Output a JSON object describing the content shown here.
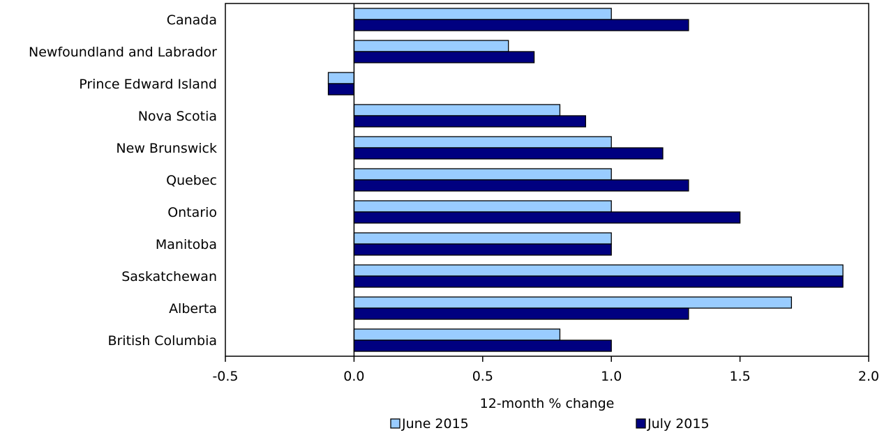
{
  "chart_data": {
    "type": "bar",
    "orientation": "horizontal",
    "categories": [
      "Canada",
      "Newfoundland and Labrador",
      "Prince Edward Island",
      "Nova Scotia",
      "New Brunswick",
      "Quebec",
      "Ontario",
      "Manitoba",
      "Saskatchewan",
      "Alberta",
      "British Columbia"
    ],
    "series": [
      {
        "name": "June 2015",
        "color": "#99ccff",
        "values": [
          1.0,
          0.6,
          -0.1,
          0.8,
          1.0,
          1.0,
          1.0,
          1.0,
          1.9,
          1.7,
          0.8
        ]
      },
      {
        "name": "July 2015",
        "color": "#000080",
        "values": [
          1.3,
          0.7,
          -0.1,
          0.9,
          1.2,
          1.3,
          1.5,
          1.0,
          1.9,
          1.3,
          1.0
        ]
      }
    ],
    "xlabel": "12-month % change",
    "xlim": [
      -0.5,
      2.0
    ],
    "xticks": [
      "-0.5",
      "0.0",
      "0.5",
      "1.0",
      "1.5",
      "2.0"
    ],
    "grid": false,
    "legend_position": "bottom"
  }
}
